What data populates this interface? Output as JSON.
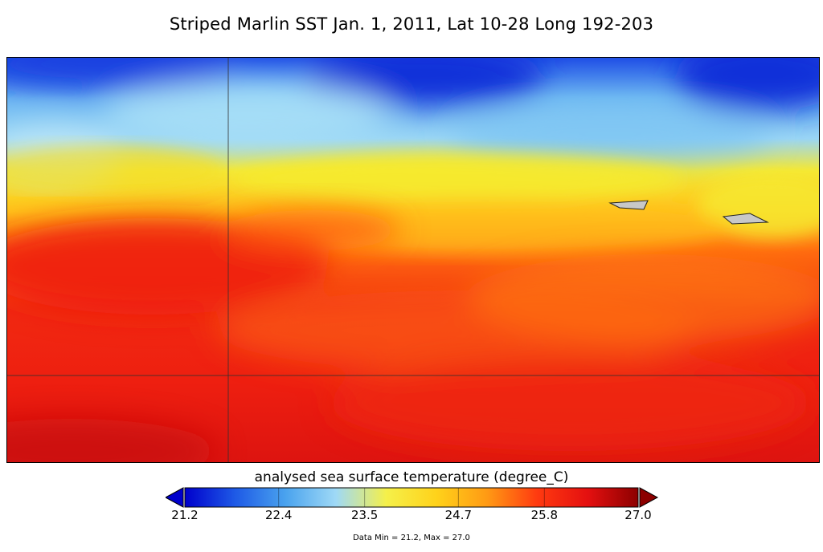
{
  "title": "Striped Marlin SST Jan. 1, 2011, Lat 10-28  Long 192-203",
  "chart_data": {
    "type": "heatmap",
    "variable": "analysed sea surface temperature (degree_C)",
    "lat_range": [
      10,
      28
    ],
    "lon_range": [
      192,
      203
    ],
    "color_range": [
      21.2,
      27.0
    ],
    "colorbar_ticks": [
      "21.2",
      "22.4",
      "23.5",
      "24.7",
      "25.8",
      "27.0"
    ],
    "colorbar_colors": [
      "#0000cc",
      "#1e5ae6",
      "#4aa3ee",
      "#9fd9f6",
      "#f5f04a",
      "#ffd21a",
      "#ff9a14",
      "#ff3a10",
      "#e41010",
      "#8c0000"
    ],
    "data_min": 21.2,
    "data_max": 27.0,
    "land_color": "#c8c8c8",
    "grid": true
  },
  "colorbar": {
    "title": "analysed sea surface temperature (degree_C)",
    "ticks": [
      "21.2",
      "22.4",
      "23.5",
      "24.7",
      "25.8",
      "27.0"
    ]
  },
  "footer": {
    "data_range": "Data Min = 21.2, Max = 27.0"
  }
}
